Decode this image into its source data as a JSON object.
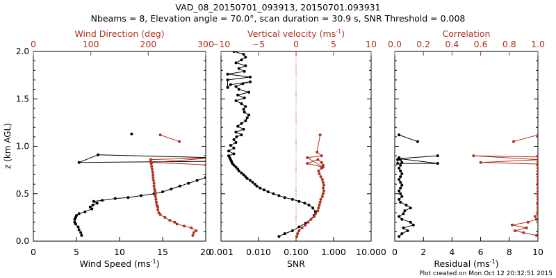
{
  "title_line1": "VAD_08_20150701_093913, 20150701.093931",
  "title_line2": "Nbeams = 8, Elevation angle = 70.0°, scan duration = 30.9 s, SNR Threshold = 0.008",
  "footer": "Plot created on Mon Oct 12 20:32:51 2015",
  "colors": {
    "primary": "#000000",
    "secondary": "#b03020"
  },
  "chart_data": [
    {
      "type": "line",
      "ylabel": "z (km AGL)",
      "ylim": [
        0.0,
        2.0
      ],
      "yticks": [
        "0.0",
        "0.5",
        "1.0",
        "1.5",
        "2.0"
      ],
      "bottom_axis": {
        "label": "Wind Speed (ms",
        "label_sup": "-1",
        "label_close": ")",
        "xlim": [
          0,
          20
        ],
        "ticks": [
          "0",
          "5",
          "10",
          "15",
          "20"
        ]
      },
      "top_axis": {
        "label": "Wind Direction (deg)",
        "xlim": [
          0,
          360
        ],
        "ticks": [
          "0",
          "100",
          "200",
          "300"
        ]
      },
      "series": [
        {
          "axis": "bottom",
          "color": "primary",
          "x": [
            5.6,
            5.5,
            5.3,
            5.2,
            4.9,
            4.8,
            4.8,
            4.9,
            5.0,
            5.3,
            6.0,
            6.8,
            6.6,
            6.9,
            7.4,
            7.0,
            8.0,
            9.5,
            11.0,
            12.5,
            14.0,
            15.0,
            16.0,
            17.0,
            18.0,
            19.0,
            20.0,
            30,
            5.3,
            7.5,
            30
          ],
          "y": [
            0.06,
            0.09,
            0.12,
            0.15,
            0.18,
            0.2,
            0.23,
            0.25,
            0.27,
            0.29,
            0.31,
            0.34,
            0.36,
            0.38,
            0.4,
            0.42,
            0.43,
            0.45,
            0.46,
            0.48,
            0.5,
            0.52,
            0.55,
            0.58,
            0.61,
            0.64,
            0.67,
            0.85,
            0.83,
            0.91,
            0.86
          ]
        },
        {
          "axis": "bottom",
          "color": "primary",
          "x": [
            11.4
          ],
          "y": [
            1.13
          ]
        },
        {
          "axis": "top",
          "color": "secondary",
          "x": [
            333,
            335,
            340,
            330,
            315,
            300,
            295,
            285,
            275,
            265,
            262,
            260,
            260,
            258,
            257,
            256,
            255,
            255,
            254,
            253,
            252,
            252,
            251,
            250,
            250,
            249,
            248,
            247,
            246,
            245,
            245,
            380,
            248,
            380
          ],
          "y": [
            0.06,
            0.09,
            0.11,
            0.14,
            0.16,
            0.18,
            0.2,
            0.22,
            0.25,
            0.28,
            0.3,
            0.33,
            0.36,
            0.38,
            0.41,
            0.44,
            0.47,
            0.5,
            0.53,
            0.55,
            0.58,
            0.61,
            0.64,
            0.67,
            0.7,
            0.73,
            0.76,
            0.79,
            0.82,
            0.84,
            0.86,
            0.88,
            0.83,
            0.8
          ]
        },
        {
          "axis": "top",
          "color": "secondary",
          "x": [
            265,
            305
          ],
          "y": [
            1.12,
            1.05
          ]
        }
      ]
    },
    {
      "type": "line",
      "bottom_axis": {
        "label": "SNR",
        "scale": "log",
        "xlim": [
          0.001,
          10.0
        ],
        "ticks": [
          "0.001",
          "0.010",
          "0.100",
          "1.000",
          "10.000"
        ]
      },
      "top_axis": {
        "label": "Vertical velocity (ms",
        "label_sup": "-1",
        "label_close": ")",
        "xlim": [
          -10,
          10
        ],
        "ticks": [
          "−10",
          "−5",
          "0",
          "5",
          "10"
        ]
      },
      "reference_line_x_top": 0,
      "series": [
        {
          "axis": "bottom",
          "color": "primary",
          "x": [
            0.035,
            0.05,
            0.08,
            0.12,
            0.18,
            0.25,
            0.3,
            0.33,
            0.28,
            0.22,
            0.17,
            0.12,
            0.08,
            0.05,
            0.035,
            0.025,
            0.018,
            0.014,
            0.011,
            0.009,
            0.008,
            0.007,
            0.006,
            0.005,
            0.0045,
            0.004,
            0.0035,
            0.003,
            0.0028,
            0.0025,
            0.0022,
            0.002,
            0.0019,
            0.0018,
            0.0017,
            0.0016,
            0.0022,
            0.0016,
            0.0022,
            0.0018,
            0.0025,
            0.0022,
            0.0026,
            0.0035,
            0.0025,
            0.004,
            0.0028,
            0.0035,
            0.0045,
            0.005,
            0.0055,
            0.0042,
            0.004,
            0.0045,
            0.0035,
            0.0025,
            0.0042,
            0.0028,
            0.0055,
            0.003,
            0.0025,
            0.0038,
            0.006,
            0.0018,
            0.0015,
            0.0015,
            0.006,
            0.0015,
            0.0042,
            0.003,
            0.0045,
            0.0025,
            0.0035,
            0.0045,
            0.004,
            0.0022
          ],
          "y": [
            0.05,
            0.08,
            0.11,
            0.15,
            0.19,
            0.23,
            0.27,
            0.31,
            0.35,
            0.38,
            0.4,
            0.42,
            0.44,
            0.46,
            0.48,
            0.5,
            0.52,
            0.54,
            0.56,
            0.58,
            0.6,
            0.62,
            0.64,
            0.66,
            0.68,
            0.7,
            0.72,
            0.74,
            0.76,
            0.78,
            0.8,
            0.82,
            0.84,
            0.86,
            0.88,
            0.9,
            0.92,
            0.95,
            0.98,
            1.01,
            1.04,
            1.07,
            1.1,
            1.12,
            1.15,
            1.18,
            1.21,
            1.24,
            1.27,
            1.3,
            1.33,
            1.36,
            1.39,
            1.42,
            1.45,
            1.48,
            1.51,
            1.54,
            1.57,
            1.6,
            1.63,
            1.66,
            1.68,
            1.65,
            1.62,
            1.7,
            1.73,
            1.76,
            1.79,
            1.82,
            1.85,
            1.88,
            1.91,
            1.94,
            1.97,
            2.0
          ]
        },
        {
          "axis": "top",
          "color": "secondary",
          "x": [
            0.1,
            0.2,
            0.4,
            0.8,
            1.2,
            1.6,
            2.0,
            2.4,
            2.6,
            2.9,
            3.0,
            3.1,
            3.2,
            3.3,
            3.5,
            3.6,
            3.7,
            3.6,
            3.7,
            3.6,
            3.5,
            3.3,
            3.1,
            3.0,
            3.4,
            3.6,
            3.4,
            2.9,
            1.5,
            3.6,
            1.5,
            3.4,
            2.8,
            3.2
          ],
          "y": [
            0.05,
            0.08,
            0.11,
            0.14,
            0.17,
            0.2,
            0.23,
            0.26,
            0.29,
            0.32,
            0.35,
            0.38,
            0.41,
            0.44,
            0.47,
            0.5,
            0.53,
            0.56,
            0.59,
            0.62,
            0.65,
            0.68,
            0.71,
            0.74,
            0.77,
            0.8,
            0.83,
            0.86,
            0.82,
            0.78,
            0.88,
            0.9,
            0.94,
            1.12
          ]
        }
      ]
    },
    {
      "type": "line",
      "bottom_axis": {
        "label": "Residual (ms",
        "label_sup": "-1",
        "label_close": ")",
        "xlim": [
          0,
          10
        ],
        "ticks": [
          "0",
          "2",
          "4",
          "6",
          "8",
          "10"
        ]
      },
      "top_axis": {
        "label": "Correlation",
        "xlim": [
          0.0,
          1.0
        ],
        "ticks": [
          "0.0",
          "0.2",
          "0.4",
          "0.6",
          "0.8",
          "1.0"
        ]
      },
      "series": [
        {
          "axis": "bottom",
          "color": "primary",
          "x": [
            0.3,
            0.5,
            0.9,
            0.6,
            1.3,
            1.1,
            0.5,
            0.3,
            0.6,
            0.7,
            1.1,
            0.8,
            0.4,
            0.3,
            0.5,
            0.4,
            0.3,
            0.4,
            0.5,
            0.4,
            0.3,
            0.4,
            0.5,
            0.4,
            0.3,
            0.4,
            0.5,
            0.4,
            0.3,
            0.2,
            0.2,
            3.0,
            0.3,
            3.0
          ],
          "y": [
            0.05,
            0.08,
            0.11,
            0.14,
            0.17,
            0.2,
            0.23,
            0.26,
            0.29,
            0.32,
            0.35,
            0.38,
            0.41,
            0.44,
            0.47,
            0.5,
            0.53,
            0.56,
            0.59,
            0.62,
            0.65,
            0.68,
            0.71,
            0.74,
            0.77,
            0.8,
            0.83,
            0.86,
            0.88,
            0.86,
            0.82,
            0.82,
            0.87,
            0.9
          ]
        },
        {
          "axis": "bottom",
          "color": "primary",
          "x": [
            0.3,
            1.6
          ],
          "y": [
            1.12,
            1.05
          ]
        },
        {
          "axis": "top",
          "color": "secondary",
          "x": [
            0.99,
            0.9,
            0.84,
            0.92,
            0.82,
            0.93,
            0.99,
            0.98,
            1.0,
            1.0,
            1.0,
            1.0,
            1.0,
            1.0,
            1.0,
            1.0,
            1.0,
            1.0,
            1.0,
            1.0,
            1.0,
            1.0,
            1.0,
            1.0,
            1.0,
            1.0,
            1.0,
            1.0,
            1.0,
            0.55,
            1.3,
            0.6,
            1.3
          ],
          "y": [
            0.06,
            0.09,
            0.11,
            0.14,
            0.17,
            0.2,
            0.23,
            0.26,
            0.29,
            0.32,
            0.35,
            0.38,
            0.41,
            0.44,
            0.47,
            0.5,
            0.53,
            0.56,
            0.59,
            0.62,
            0.65,
            0.68,
            0.71,
            0.74,
            0.77,
            0.8,
            0.83,
            0.86,
            0.86,
            0.9,
            0.88,
            0.83,
            0.8
          ]
        },
        {
          "axis": "top",
          "color": "secondary",
          "x": [
            0.83,
            1.0
          ],
          "y": [
            1.05,
            1.12
          ]
        }
      ]
    }
  ]
}
